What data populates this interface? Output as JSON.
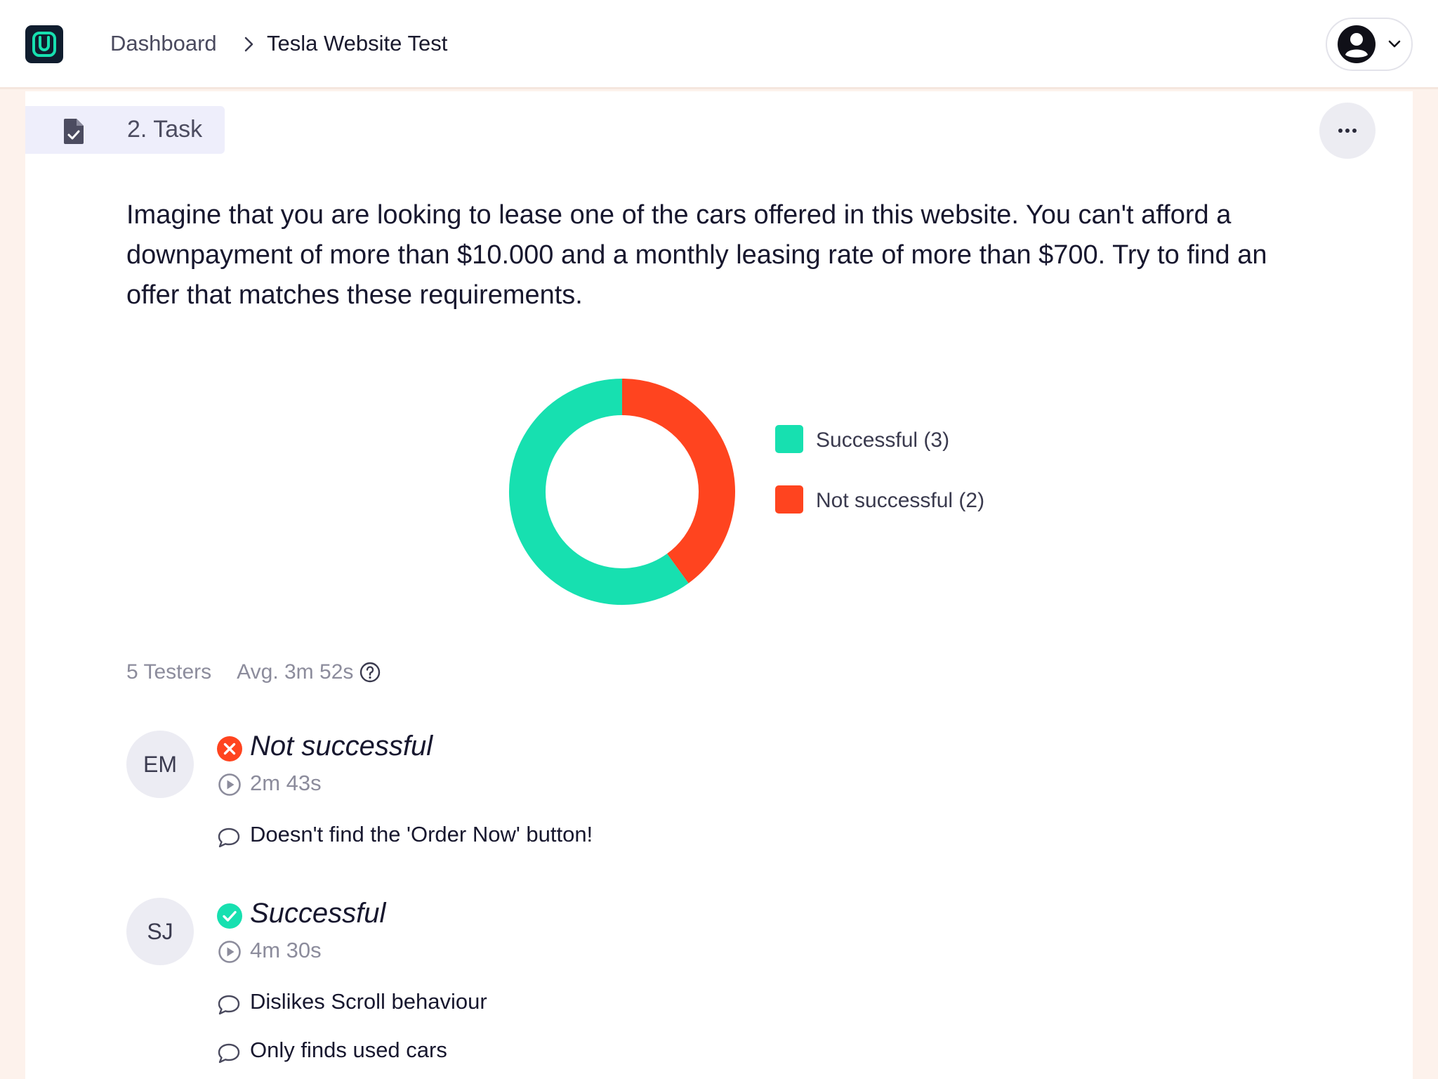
{
  "header": {
    "breadcrumb_home": "Dashboard",
    "breadcrumb_current": "Tesla Website Test"
  },
  "task": {
    "label": "2. Task",
    "description": "Imagine that you are looking to lease one of the cars offered in this website. You can't afford a downpayment of more than $10.000 and a monthly leasing rate of more than $700. Try to find an offer that matches these requirements."
  },
  "chart_data": {
    "type": "pie",
    "categories": [
      "Successful (3)",
      "Not successful (2)"
    ],
    "values": [
      3,
      2
    ],
    "colors": [
      "#17e0b0",
      "#ff441f"
    ],
    "legend": "right"
  },
  "stats": {
    "testers": "5 Testers",
    "avg_time": "Avg. 3m 52s"
  },
  "results": [
    {
      "initials": "EM",
      "status": "Not successful",
      "duration": "2m 43s",
      "comments": [
        "Doesn't find the 'Order Now' button!"
      ]
    },
    {
      "initials": "SJ",
      "status": "Successful",
      "duration": "4m 30s",
      "comments": [
        "Dislikes Scroll behaviour",
        "Only finds used cars"
      ]
    }
  ],
  "colors": {
    "success": "#17e0b0",
    "failure": "#ff441f",
    "brand": "#101d2e"
  }
}
